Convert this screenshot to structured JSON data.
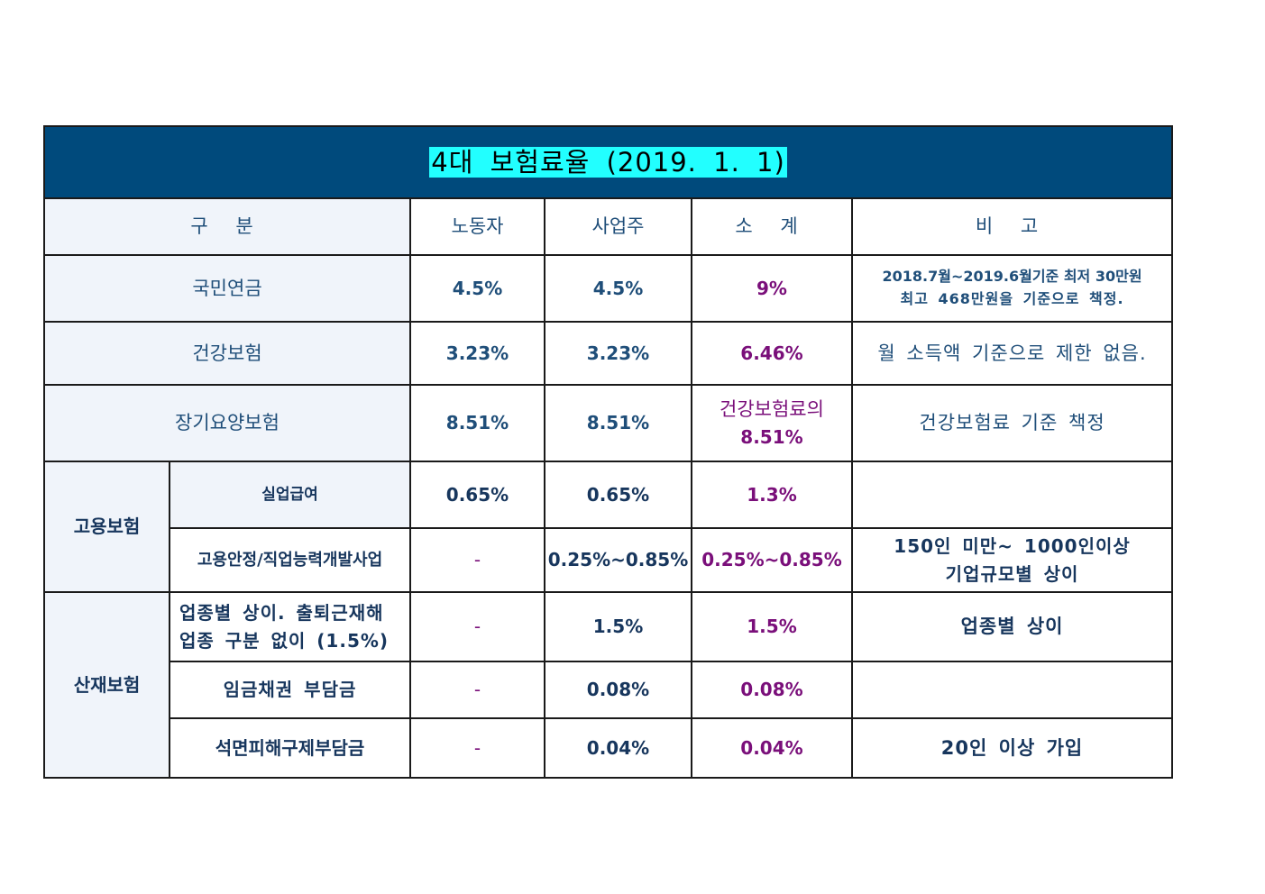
{
  "title": "4대 보험료율  (2019. 1. 1)",
  "header": {
    "category": "구 분",
    "worker": "노동자",
    "employer": "사업주",
    "subtotal": "소 계",
    "note": "비 고"
  },
  "rows": {
    "pension": {
      "label": "국민연금",
      "worker": "4.5%",
      "employer": "4.5%",
      "subtotal": "9%",
      "note_line1": "2018.7월~2019.6월기준 최저 30만원",
      "note_line2": "최고 468만원을 기준으로 책정."
    },
    "health": {
      "label": "건강보험",
      "worker": "3.23%",
      "employer": "3.23%",
      "subtotal": "6.46%",
      "note": "월 소득액 기준으로 제한 없음."
    },
    "longterm": {
      "label": "장기요양보험",
      "worker": "8.51%",
      "employer": "8.51%",
      "subtotal_line1": "건강보험료의",
      "subtotal_line2": "8.51%",
      "note": "건강보험료 기준 책정"
    },
    "employment": {
      "group_label": "고용보험",
      "unemployment": {
        "label": "실업급여",
        "worker": "0.65%",
        "employer": "0.65%",
        "subtotal": "1.3%",
        "note": ""
      },
      "stability": {
        "label": "고용안정/직업능력개발사업",
        "worker": "-",
        "employer": "0.25%~0.85%",
        "subtotal": "0.25%~0.85%",
        "note_line1": "150인 미만~ 1000인이상",
        "note_line2": "기업규모별 상이"
      }
    },
    "industrial": {
      "group_label": "산재보험",
      "industry": {
        "label_line1": "업종별 상이. 출퇴근재해",
        "label_line2": "업종 구분 없이 (1.5%)",
        "worker": "-",
        "employer": "1.5%",
        "subtotal": "1.5%",
        "note": "업종별 상이"
      },
      "wage_claim": {
        "label": "임금채권 부담금",
        "worker": "-",
        "employer": "0.08%",
        "subtotal": "0.08%",
        "note": ""
      },
      "asbestos": {
        "label": "석면피해구제부담금",
        "worker": "-",
        "employer": "0.04%",
        "subtotal": "0.04%",
        "note": "20인 이상 가입"
      }
    }
  },
  "colors": {
    "title_bg": "#004a7c",
    "title_highlight": "#22ffff",
    "text_blue": "#1f4e79",
    "text_navy": "#17365d",
    "text_purple": "#7a0f7a",
    "label_shade": "#f0f4fa",
    "border": "#1a1a1a"
  }
}
